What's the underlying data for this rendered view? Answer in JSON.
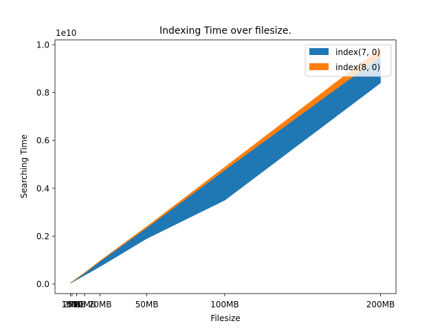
{
  "chart_data": {
    "type": "area",
    "title": "Indexing Time over filesize.",
    "xlabel": "Filesize",
    "ylabel": "Searching Time",
    "y_offset_label": "1e10",
    "x_ticks": [
      {
        "value": 1,
        "label": "1MB"
      },
      {
        "value": 2,
        "label": "2MB"
      },
      {
        "value": 5,
        "label": "5MB"
      },
      {
        "value": 10,
        "label": "10MB"
      },
      {
        "value": 20,
        "label": "20MB"
      },
      {
        "value": 50,
        "label": "50MB"
      },
      {
        "value": 100,
        "label": "100MB"
      },
      {
        "value": 200,
        "label": "200MB"
      }
    ],
    "y_ticks": [
      {
        "value": 0.0,
        "label": "0.0"
      },
      {
        "value": 0.2,
        "label": "0.2"
      },
      {
        "value": 0.4,
        "label": "0.4"
      },
      {
        "value": 0.6,
        "label": "0.6"
      },
      {
        "value": 0.8,
        "label": "0.8"
      },
      {
        "value": 1.0,
        "label": "1.0"
      }
    ],
    "xlim": [
      -8.95,
      209.95
    ],
    "ylim": [
      -0.04,
      1.02
    ],
    "grid": false,
    "legend_position": "top-right",
    "x": [
      1,
      2,
      5,
      10,
      20,
      50,
      100,
      200
    ],
    "series": [
      {
        "name": "index(7, 0)",
        "color": "#1f77b4",
        "lower": [
          0.003,
          0.007,
          0.018,
          0.036,
          0.073,
          0.19,
          0.35,
          0.84
        ],
        "upper": [
          0.004,
          0.009,
          0.022,
          0.045,
          0.095,
          0.235,
          0.476,
          0.965
        ]
      },
      {
        "name": "index(8, 0)",
        "color": "#ff7f0e",
        "lower": [
          0.004,
          0.009,
          0.022,
          0.045,
          0.095,
          0.235,
          0.476,
          0.95
        ],
        "upper": [
          0.0045,
          0.0095,
          0.0235,
          0.047,
          0.097,
          0.24,
          0.488,
          0.985
        ]
      }
    ]
  }
}
